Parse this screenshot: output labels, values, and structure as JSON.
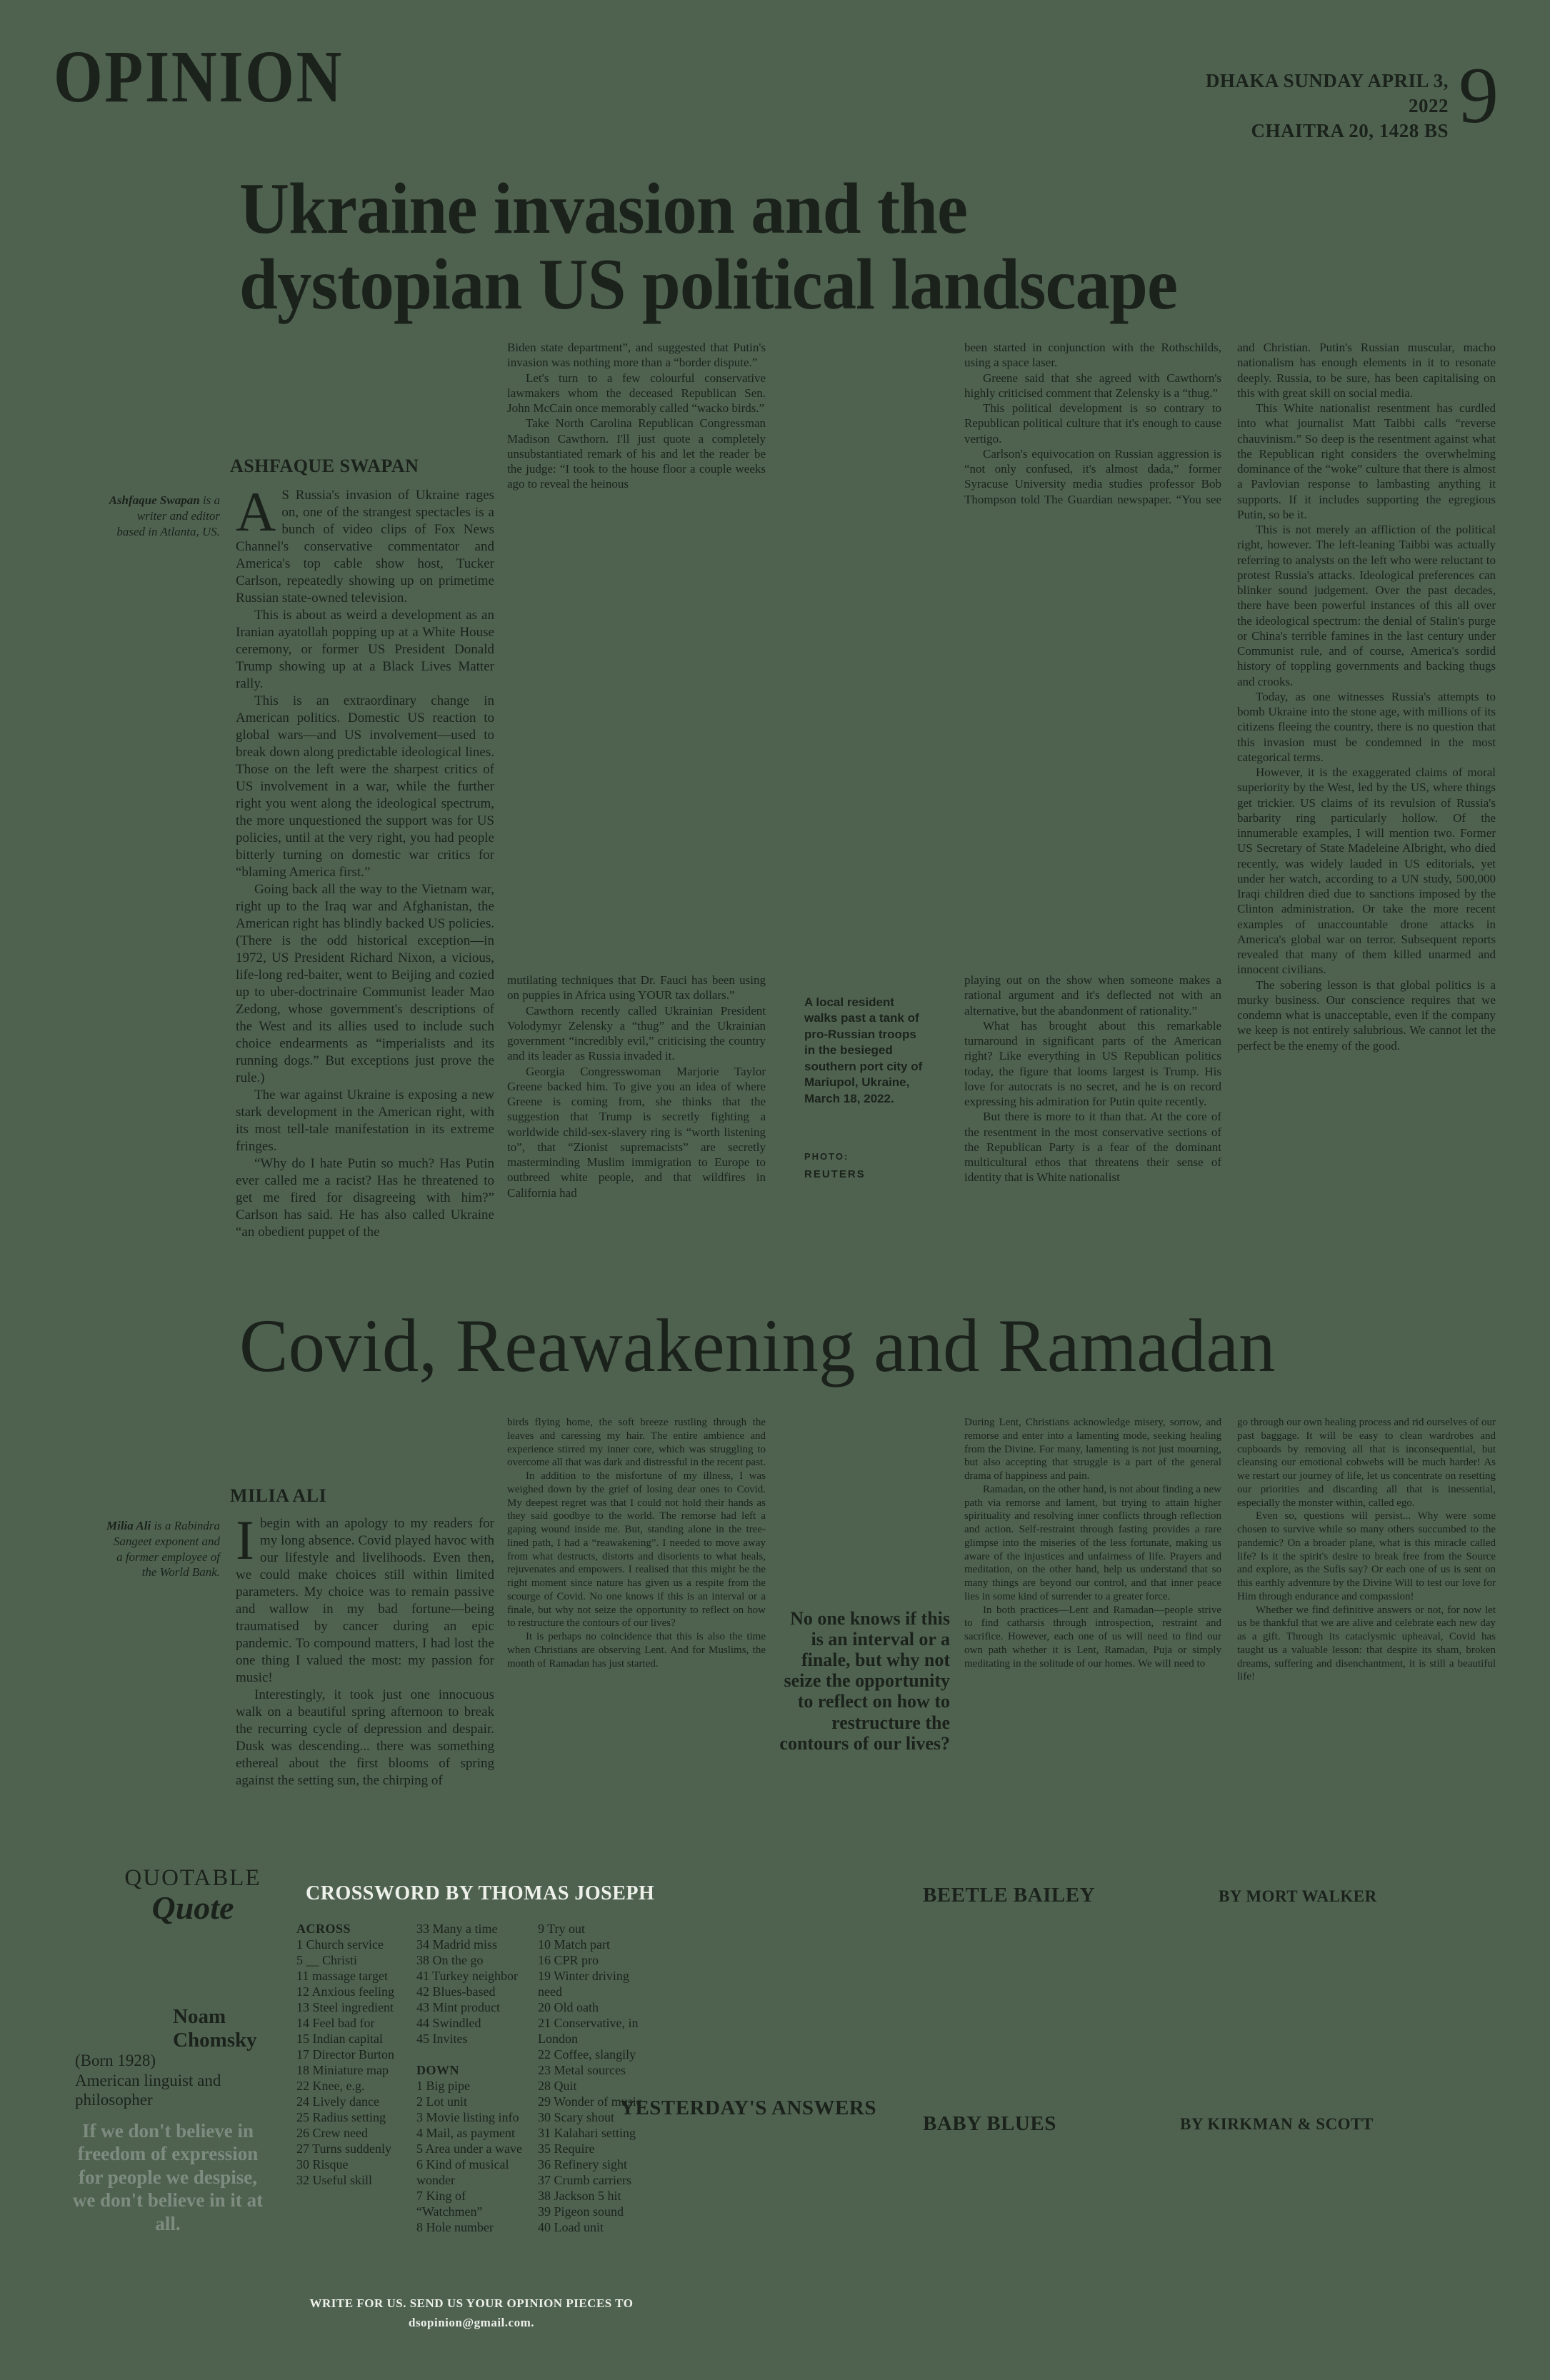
{
  "page": {
    "section": "OPINION",
    "date_line1": "DHAKA SUNDAY APRIL 3, 2022",
    "date_line2": "CHAITRA 20, 1428 BS",
    "page_number": "9"
  },
  "article1": {
    "headline_line1": "Ukraine invasion and the",
    "headline_line2": "dystopian US political landscape",
    "author": "ASHFAQUE SWAPAN",
    "bio_name": "Ashfaque Swapan",
    "bio_rest": " is a writer and editor based in Atlanta, US.",
    "col1": [
      "AS Russia's invasion of Ukraine rages on, one of the strangest spectacles is a bunch of video clips of Fox News Channel's conservative commentator and America's top cable show host, Tucker Carlson, repeatedly showing up on primetime Russian state-owned television.",
      "This is about as weird a development as an Iranian ayatollah popping up at a White House ceremony, or former US President Donald Trump showing up at a Black Lives Matter rally.",
      "This is an extraordinary change in American politics. Domestic US reaction to global wars—and US involvement—used to break down along predictable ideological lines. Those on the left were the sharpest critics of US involvement in a war, while the further right you went along the ideological spectrum, the more unquestioned the support was for US policies, until at the very right, you had people bitterly turning on domestic war critics for “blaming America first.”",
      "Going back all the way to the Vietnam war, right up to the Iraq war and Afghanistan, the American right has blindly backed US policies. (There is the odd historical exception—in 1972, US President Richard Nixon, a vicious, life-long red-baiter, went to Beijing and cozied up to uber-doctrinaire Communist leader Mao Zedong, whose government's descriptions of the West and its allies used to include such choice endearments as “imperialists and its running dogs.” But exceptions just prove the rule.)",
      "The war against Ukraine is exposing a new stark development in the American right, with its most tell-tale manifestation in its extreme fringes.",
      "“Why do I hate Putin so much? Has Putin ever called me a racist? Has he threatened to get me fired for disagreeing with him?” Carlson has said. He has also called Ukraine “an obedient puppet of the"
    ],
    "col2_top": [
      "Biden state department”, and suggested that Putin's invasion was nothing more than a “border dispute.”",
      "Let's turn to a few colourful conservative lawmakers whom the deceased Republican Sen. John McCain once memorably called “wacko birds.”",
      "Take North Carolina Republican Congressman Madison Cawthorn. I'll just quote a completely unsubstantiated remark of his and let the reader be the judge: “I took to the house floor a couple weeks ago to reveal the heinous"
    ],
    "col2_bottom": [
      "mutilating techniques that Dr. Fauci has been using on puppies in Africa using YOUR tax dollars.”",
      "Cawthorn recently called Ukrainian President Volodymyr Zelensky a “thug” and the Ukrainian government “incredibly evil,” criticising the country and its leader as Russia invaded it.",
      "Georgia Congresswoman Marjorie Taylor Greene backed him. To give you an idea of where Greene is coming from, she thinks that the suggestion that Trump is secretly fighting a worldwide child-sex-slavery ring is “worth listening to”, that “Zionist supremacists” are secretly masterminding Muslim immigration to Europe to outbreed white people, and that wildfires in California had"
    ],
    "col3_top": [
      "been started in conjunction with the Rothschilds, using a space laser.",
      "Greene said that she agreed with Cawthorn's highly criticised comment that Zelensky is a “thug.”",
      "This political development is so contrary to Republican political culture that it's enough to cause vertigo.",
      "Carlson's equivocation on Russian aggression is “not only confused, it's almost dada,” former Syracuse University media studies professor Bob Thompson told The Guardian newspaper. “You see it"
    ],
    "col3_bottom": [
      "playing out on the show when someone makes a rational argument and it's deflected not with an alternative, but the abandonment of rationality.”",
      "What has brought about this remarkable turnaround in significant parts of the American right? Like everything in US Republican politics today, the figure that looms largest is Trump. His love for autocrats is no secret, and he is on record expressing his admiration for Putin quite recently.",
      "But there is more to it than that. At the core of the resentment in the most conservative sections of the Republican Party is a fear of the dominant multicultural ethos that threatens their sense of identity that is White nationalist"
    ],
    "col4": [
      "and Christian. Putin's Russian muscular, macho nationalism has enough elements in it to resonate deeply. Russia, to be sure, has been capitalising on this with great skill on social media.",
      "This White nationalist resentment has curdled into what journalist Matt Taibbi calls “reverse chauvinism.” So deep is the resentment against what the Republican right considers the overwhelming dominance of the “woke” culture that there is almost a Pavlovian response to lambasting anything it supports. If it includes supporting the egregious Putin, so be it.",
      "This is not merely an affliction of the political right, however. The left-leaning Taibbi was actually referring to analysts on the left who were reluctant to protest Russia's attacks. Ideological preferences can blinker sound judgement. Over the past decades, there have been powerful instances of this all over the ideological spectrum: the denial of Stalin's purge or China's terrible famines in the last century under Communist rule, and of course, America's sordid history of toppling governments and backing thugs and crooks.",
      "Today, as one witnesses Russia's attempts to bomb Ukraine into the stone age, with millions of its citizens fleeing the country, there is no question that this invasion must be condemned in the most categorical terms.",
      "However, it is the exaggerated claims of moral superiority by the West, led by the US, where things get trickier. US claims of its revulsion of Russia's barbarity ring particularly hollow. Of the innumerable examples, I will mention two. Former US Secretary of State Madeleine Albright, who died recently, was widely lauded in US editorials, yet under her watch, according to a UN study, 500,000 Iraqi children died due to sanctions imposed by the Clinton administration. Or take the more recent examples of unaccountable drone attacks in America's global war on terror. Subsequent reports revealed that many of them killed unarmed and innocent civilians.",
      "The sobering lesson is that global politics is a murky business. Our conscience requires that we condemn what is unacceptable, even if the company we keep is not entirely salubrious. We cannot let the perfect be the enemy of the good."
    ],
    "photo_caption": "A local resident walks past a tank of pro-Russian troops in the besieged southern port city of Mariupol, Ukraine, March 18, 2022.",
    "photo_credit_label": "PHOTO:",
    "photo_credit": "REUTERS"
  },
  "article2": {
    "headline": "Covid, Reawakening and Ramadan",
    "author": "MILIA ALI",
    "bio_name": "Milia Ali",
    "bio_rest": " is a Rabindra Sangeet exponent and a former employee of the World Bank.",
    "col1": [
      "I begin with an apology to my readers for my long absence. Covid played havoc with our lifestyle and livelihoods. Even then, we could make choices still within limited parameters. My choice was to remain passive and wallow in my bad fortune—being traumatised by cancer during an epic pandemic. To compound matters, I had lost the one thing I valued the most: my passion for music!",
      "Interestingly, it took just one innocuous walk on a beautiful spring afternoon to break the recurring cycle of depression and despair. Dusk was descending... there was something ethereal about the first blooms of spring against the setting sun, the chirping of"
    ],
    "col2": [
      "birds flying home, the soft breeze rustling through the leaves and caressing my hair. The entire ambience and experience stirred my inner core, which was struggling to overcome all that was dark and distressful in the recent past.",
      "In addition to the misfortune of my illness, I was weighed down by the grief of losing dear ones to Covid. My deepest regret was that I could not hold their hands as they said goodbye to the world. The remorse had left a gaping wound inside me. But, standing alone in the tree-lined path, I had a “reawakening”. I needed to move away from what destructs, distorts and disorients to what heals, rejuvenates and empowers. I realised that this might be the right moment since nature has given us a respite from the scourge of Covid. No one knows if this is an interval or a finale, but why not seize the opportunity to reflect on how to restructure the contours of our lives?",
      "It is perhaps no coincidence that this is also the time when Christians are observing Lent. And for Muslims, the month of Ramadan has just started."
    ],
    "pull_quote": "No one knows if this is an interval or a finale, but why not seize the opportunity to reflect on how to restructure the contours of our lives?",
    "col4": [
      "During Lent, Christians acknowledge misery, sorrow, and remorse and enter into a lamenting mode, seeking healing from the Divine. For many, lamenting is not just mourning, but also accepting that struggle is a part of the general drama of happiness and pain.",
      "Ramadan, on the other hand, is not about finding a new path via remorse and lament, but trying to attain higher spirituality and resolving inner conflicts through reflection and action. Self-restraint through fasting provides a rare glimpse into the miseries of the less fortunate, making us aware of the injustices and unfairness of life. Prayers and meditation, on the other hand, help us understand that so many things are beyond our control, and that inner peace lies in some kind of surrender to a greater force.",
      "In both practices—Lent and Ramadan—people strive to find catharsis through introspection, restraint and sacrifice. However, each one of us will need to find our own path whether it is Lent, Ramadan, Puja or simply meditating in the solitude of our homes. We will need to"
    ],
    "col5": [
      "go through our own healing process and rid ourselves of our past baggage. It will be easy to clean wardrobes and cupboards by removing all that is inconsequential, but cleansing our emotional cobwebs will be much harder! As we restart our journey of life, let us concentrate on resetting our priorities and discarding all that is inessential, especially the monster within, called ego.",
      "Even so, questions will persist... Why were some chosen to survive while so many others succumbed to the pandemic? On a broader plane, what is this miracle called life? Is it the spirit's desire to break free from the Source and explore, as the Sufis say? Or each one of us is sent on this earthly adventure by the Divine Will to test our love for Him through endurance and compassion!",
      "Whether we find definitive answers or not, for now let us be thankful that we are alive and celebrate each new day as a gift. Through its cataclysmic upheaval, Covid has taught us a valuable lesson: that despite its sham, broken dreams, suffering and disenchantment, it is still a beautiful life!"
    ]
  },
  "quotable": {
    "kicker": "QUOTABLE",
    "title": "Quote",
    "person": "Noam Chomsky",
    "born": "(Born 1928)",
    "description": "American linguist and philosopher",
    "quote": "If we don't believe in freedom of expression for people we despise, we don't believe in it at all."
  },
  "crossword": {
    "title": "CROSSWORD BY THOMAS JOSEPH",
    "across_label": "ACROSS",
    "down_label": "DOWN",
    "col1_clues": [
      "1 Church service",
      "5 __ Christi",
      "11 massage target",
      "12 Anxious feeling",
      "13 Steel ingredient",
      "14 Feel bad for",
      "15 Indian capital",
      "17 Director Burton",
      "18 Miniature map",
      "22 Knee, e.g.",
      "24 Lively dance",
      "25 Radius setting",
      "26 Crew need",
      "27 Turns suddenly",
      "30 Risque",
      "32 Useful skill"
    ],
    "col2_across": [
      "33 Many a time",
      "34 Madrid miss",
      "38 On the go",
      "41 Turkey neighbor",
      "42 Blues-based",
      "43 Mint product",
      "44 Swindled",
      "45 Invites"
    ],
    "col2_down": [
      "1 Big pipe",
      "2 Lot unit",
      "3 Movie listing info",
      "4 Mail, as payment",
      "5 Area under a wave",
      "6 Kind of musical wonder",
      "7 King of “Watchmen”",
      "8 Hole number"
    ],
    "col3_clues": [
      "9 Try out",
      "10 Match part",
      "16 CPR pro",
      "19 Winter driving need",
      "20 Old oath",
      "21 Conservative, in London",
      "22 Coffee, slangily",
      "23 Metal sources",
      "28 Quit",
      "29 Wonder of music",
      "30 Scary shout",
      "31 Kalahari setting",
      "35 Require",
      "36 Refinery sight",
      "37 Crumb carriers",
      "38 Jackson 5 hit",
      "39 Pigeon sound",
      "40 Load unit"
    ]
  },
  "comics": {
    "beetle_title": "BEETLE BAILEY",
    "beetle_byline": "BY MORT WALKER",
    "answers_title": "YESTERDAY'S ANSWERS",
    "baby_title": "BABY BLUES",
    "baby_byline": "BY KIRKMAN & SCOTT"
  },
  "footer": {
    "line1": "WRITE FOR US. SEND US YOUR OPINION PIECES TO",
    "line2": "dsopinion@gmail.com."
  }
}
